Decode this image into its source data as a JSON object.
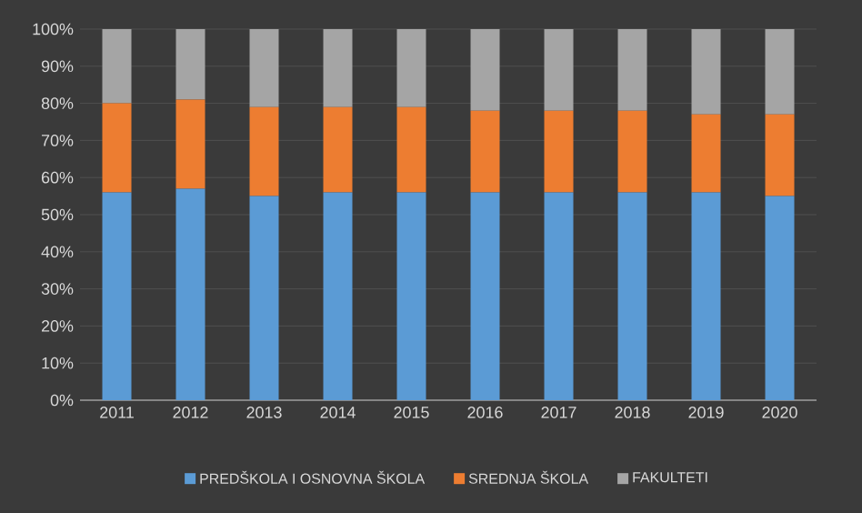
{
  "chart_data": {
    "type": "bar",
    "stacked": true,
    "categories": [
      "2011",
      "2012",
      "2013",
      "2014",
      "2015",
      "2016",
      "2017",
      "2018",
      "2019",
      "2020"
    ],
    "series": [
      {
        "name": "PREDŠKOLA I OSNOVNA ŠKOLA",
        "color": "#5b9bd5",
        "values": [
          56,
          57,
          55,
          56,
          56,
          56,
          56,
          56,
          56,
          55
        ]
      },
      {
        "name": "SREDNJA ŠKOLA",
        "color": "#ed7d31",
        "values": [
          24,
          24,
          24,
          23,
          23,
          22,
          22,
          22,
          21,
          22
        ]
      },
      {
        "name": "FAKULTETI",
        "color": "#a5a5a5",
        "values": [
          20,
          19,
          21,
          21,
          21,
          22,
          22,
          22,
          23,
          23
        ]
      }
    ],
    "ylim": [
      0,
      100
    ],
    "yticks": [
      {
        "value": 0,
        "label": "0%"
      },
      {
        "value": 10,
        "label": "10%"
      },
      {
        "value": 20,
        "label": "20%"
      },
      {
        "value": 30,
        "label": "30%"
      },
      {
        "value": 40,
        "label": "40%"
      },
      {
        "value": 50,
        "label": "50%"
      },
      {
        "value": 60,
        "label": "60%"
      },
      {
        "value": 70,
        "label": "70%"
      },
      {
        "value": 80,
        "label": "80%"
      },
      {
        "value": 90,
        "label": "90%"
      },
      {
        "value": 100,
        "label": "100%"
      }
    ],
    "grid": "y",
    "legend": "bottom"
  }
}
